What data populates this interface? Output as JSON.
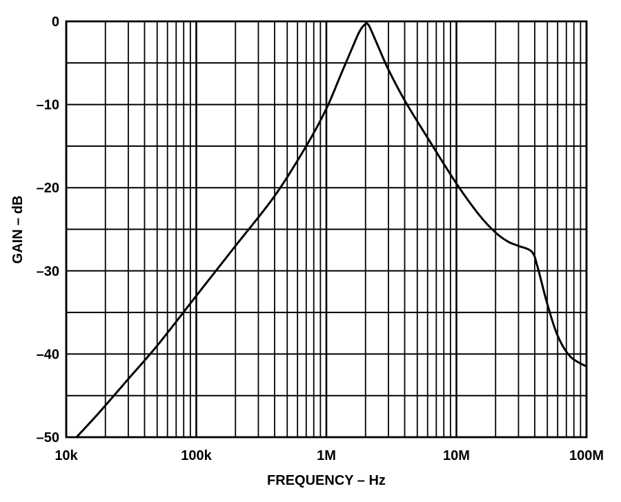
{
  "chart_data": {
    "type": "line",
    "xlabel": "FREQUENCY – Hz",
    "ylabel": "GAIN – dB",
    "x_scale": "log",
    "xlim": [
      10000,
      100000000
    ],
    "ylim": [
      -50,
      0
    ],
    "grid": true,
    "colors": {
      "line": "#000000",
      "grid": "#000000",
      "background": "#ffffff"
    },
    "x_ticks": [
      {
        "value": 10000,
        "label": "10k"
      },
      {
        "value": 100000,
        "label": "100k"
      },
      {
        "value": 1000000,
        "label": "1M"
      },
      {
        "value": 10000000,
        "label": "10M"
      },
      {
        "value": 100000000,
        "label": "100M"
      }
    ],
    "y_ticks": [
      {
        "value": 0,
        "label": "0"
      },
      {
        "value": -10,
        "label": "–10"
      },
      {
        "value": -20,
        "label": "–20"
      },
      {
        "value": -30,
        "label": "–30"
      },
      {
        "value": -40,
        "label": "–40"
      },
      {
        "value": -50,
        "label": "–50"
      }
    ],
    "series": [
      {
        "x": [
          12000,
          18000,
          30000,
          50000,
          100000,
          200000,
          400000,
          700000,
          1000000,
          1300000,
          1600000,
          1800000,
          2000000,
          2100000,
          2200000,
          2500000,
          3000000,
          4000000,
          6000000,
          10000000,
          15000000,
          20000000,
          25000000,
          30000000,
          38000000,
          42000000,
          50000000,
          60000000,
          75000000,
          100000000
        ],
        "y": [
          -50,
          -47,
          -43,
          -39,
          -33,
          -27,
          -21,
          -15,
          -10.5,
          -6.3,
          -3,
          -1.2,
          -0.3,
          -0.4,
          -1,
          -3,
          -5.8,
          -9.5,
          -14,
          -19.5,
          -23.3,
          -25.4,
          -26.5,
          -27,
          -27.7,
          -29.5,
          -34,
          -37.8,
          -40.3,
          -41.5
        ]
      }
    ]
  }
}
